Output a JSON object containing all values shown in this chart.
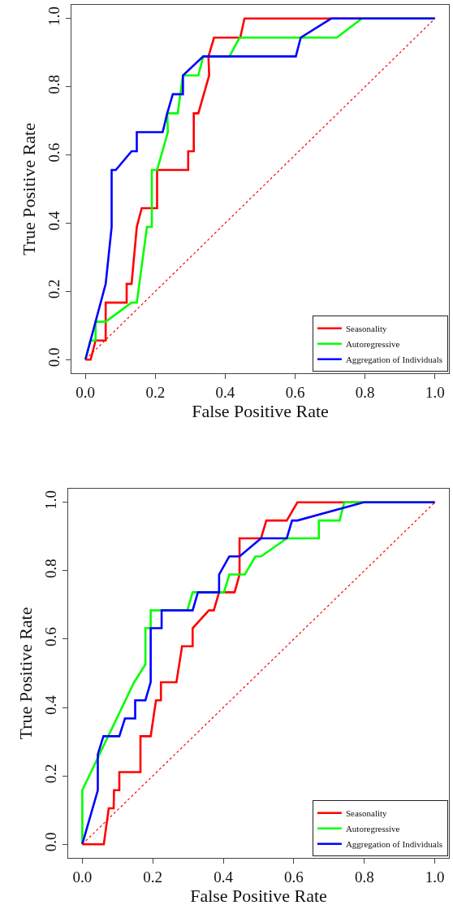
{
  "chart_data": [
    {
      "type": "line",
      "xlabel": "False Positive Rate",
      "ylabel": "True Positive Rate",
      "xlim": [
        -0.04,
        1.04
      ],
      "ylim": [
        -0.04,
        1.04
      ],
      "xticks": [
        {
          "value": 0,
          "label": "0.0"
        },
        {
          "value": 0.2,
          "label": "0.2"
        },
        {
          "value": 0.4,
          "label": "0.4"
        },
        {
          "value": 0.6,
          "label": "0.6"
        },
        {
          "value": 0.8,
          "label": "0.8"
        },
        {
          "value": 1,
          "label": "1.0"
        }
      ],
      "yticks": [
        {
          "value": 0,
          "label": "0.0"
        },
        {
          "value": 0.2,
          "label": "0.2"
        },
        {
          "value": 0.4,
          "label": "0.4"
        },
        {
          "value": 0.6,
          "label": "0.6"
        },
        {
          "value": 0.8,
          "label": "0.8"
        },
        {
          "value": 1,
          "label": "1.0"
        }
      ],
      "legend": "bottom right",
      "series": [
        {
          "name": "Seasonality",
          "color": "#ff0000",
          "x": [
            0,
            0.015,
            0.029,
            0.058,
            0.058,
            0.118,
            0.118,
            0.132,
            0.147,
            0.161,
            0.205,
            0.205,
            0.294,
            0.294,
            0.31,
            0.31,
            0.323,
            0.354,
            0.352,
            0.368,
            0.443,
            0.455,
            1
          ],
          "values": [
            0,
            0,
            0.056,
            0.056,
            0.167,
            0.167,
            0.222,
            0.222,
            0.389,
            0.444,
            0.444,
            0.556,
            0.556,
            0.611,
            0.611,
            0.722,
            0.722,
            0.833,
            0.889,
            0.944,
            0.944,
            1,
            1
          ]
        },
        {
          "name": "Autoregressive",
          "color": "#00ff00",
          "x": [
            0,
            0.014,
            0.029,
            0.029,
            0.058,
            0.132,
            0.147,
            0.176,
            0.19,
            0.19,
            0.205,
            0.236,
            0.234,
            0.264,
            0.279,
            0.323,
            0.337,
            0.412,
            0.441,
            0.719,
            0.791,
            1
          ],
          "values": [
            0,
            0.056,
            0.056,
            0.111,
            0.111,
            0.167,
            0.167,
            0.389,
            0.389,
            0.556,
            0.556,
            0.667,
            0.722,
            0.722,
            0.833,
            0.833,
            0.889,
            0.889,
            0.944,
            0.944,
            1,
            1
          ]
        },
        {
          "name": "Aggregation of Individuals",
          "color": "#0000ff",
          "x": [
            0,
            0.029,
            0.058,
            0.075,
            0.075,
            0.087,
            0.132,
            0.147,
            0.147,
            0.221,
            0.234,
            0.25,
            0.279,
            0.279,
            0.337,
            0.602,
            0.616,
            0.703,
            1
          ],
          "values": [
            0,
            0.111,
            0.222,
            0.389,
            0.556,
            0.556,
            0.611,
            0.611,
            0.667,
            0.667,
            0.722,
            0.778,
            0.778,
            0.833,
            0.889,
            0.889,
            0.944,
            1,
            1
          ]
        },
        {
          "color": "#ff0000",
          "line_style": "dotted",
          "x": [
            0,
            1
          ],
          "values": [
            0,
            1
          ]
        }
      ]
    },
    {
      "type": "line",
      "xlabel": "False Positive Rate",
      "ylabel": "True Positive Rate",
      "xlim": [
        -0.04,
        1.04
      ],
      "ylim": [
        -0.04,
        1.04
      ],
      "xticks": [
        {
          "value": 0,
          "label": "0.0"
        },
        {
          "value": 0.2,
          "label": "0.2"
        },
        {
          "value": 0.4,
          "label": "0.4"
        },
        {
          "value": 0.6,
          "label": "0.6"
        },
        {
          "value": 0.8,
          "label": "0.8"
        },
        {
          "value": 1,
          "label": "1.0"
        }
      ],
      "yticks": [
        {
          "value": 0,
          "label": "0.0"
        },
        {
          "value": 0.2,
          "label": "0.2"
        },
        {
          "value": 0.4,
          "label": "0.4"
        },
        {
          "value": 0.6,
          "label": "0.6"
        },
        {
          "value": 0.8,
          "label": "0.8"
        },
        {
          "value": 1,
          "label": "1.0"
        }
      ],
      "legend": "bottom right",
      "series": [
        {
          "name": "Seasonality",
          "color": "#ff0000",
          "x": [
            0,
            0.061,
            0.075,
            0.089,
            0.09,
            0.105,
            0.105,
            0.165,
            0.165,
            0.194,
            0.209,
            0.223,
            0.223,
            0.267,
            0.283,
            0.313,
            0.313,
            0.359,
            0.373,
            0.388,
            0.432,
            0.446,
            0.446,
            0.507,
            0.522,
            0.58,
            0.61,
            1
          ],
          "values": [
            0,
            0,
            0.105,
            0.105,
            0.158,
            0.158,
            0.211,
            0.211,
            0.316,
            0.316,
            0.421,
            0.421,
            0.474,
            0.474,
            0.579,
            0.579,
            0.632,
            0.684,
            0.684,
            0.737,
            0.737,
            0.789,
            0.895,
            0.895,
            0.947,
            0.947,
            1,
            1
          ]
        },
        {
          "name": "Autoregressive",
          "color": "#00ff00",
          "x": [
            0,
            0,
            0.147,
            0.179,
            0.179,
            0.194,
            0.194,
            0.298,
            0.313,
            0.402,
            0.417,
            0.461,
            0.491,
            0.507,
            0.58,
            0.671,
            0.671,
            0.73,
            0.743,
            1
          ],
          "values": [
            0,
            0.158,
            0.474,
            0.526,
            0.632,
            0.632,
            0.684,
            0.684,
            0.737,
            0.737,
            0.789,
            0.789,
            0.842,
            0.842,
            0.895,
            0.895,
            0.947,
            0.947,
            1,
            1
          ]
        },
        {
          "name": "Aggregation of Individuals",
          "color": "#0000ff",
          "x": [
            0,
            0.044,
            0.044,
            0.06,
            0.105,
            0.121,
            0.15,
            0.15,
            0.179,
            0.194,
            0.194,
            0.225,
            0.225,
            0.313,
            0.328,
            0.388,
            0.388,
            0.417,
            0.446,
            0.507,
            0.58,
            0.595,
            0.61,
            0.798,
            1
          ],
          "values": [
            0,
            0.158,
            0.263,
            0.316,
            0.316,
            0.368,
            0.368,
            0.421,
            0.421,
            0.474,
            0.632,
            0.632,
            0.684,
            0.684,
            0.737,
            0.737,
            0.789,
            0.842,
            0.842,
            0.895,
            0.895,
            0.947,
            0.947,
            1,
            1
          ]
        },
        {
          "color": "#ff0000",
          "line_style": "dotted",
          "x": [
            0,
            1
          ],
          "values": [
            0,
            1
          ]
        }
      ]
    }
  ]
}
